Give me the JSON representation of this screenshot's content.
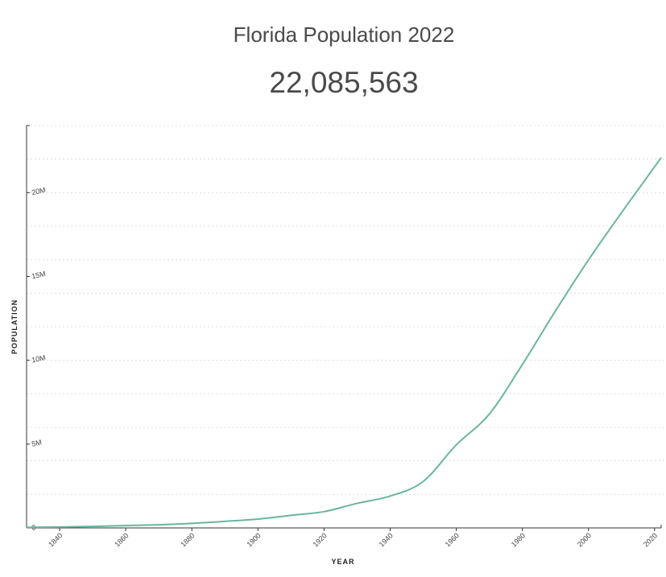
{
  "header": {
    "title": "Florida Population 2022",
    "total": "22,085,563"
  },
  "chart_data": {
    "type": "line",
    "title": "Florida Population 2022",
    "xlabel": "YEAR",
    "ylabel": "POPULATION",
    "xlim": [
      1830,
      2022
    ],
    "ylim": [
      0,
      24000000
    ],
    "x_ticks": [
      1840,
      1860,
      1880,
      1900,
      1920,
      1940,
      1960,
      1980,
      2000,
      2020
    ],
    "y_ticks": [
      0,
      5000000,
      10000000,
      15000000,
      20000000
    ],
    "y_tick_labels": [
      "0",
      "5M",
      "10M",
      "15M",
      "20M"
    ],
    "grid": true,
    "line_color": "#6ab5a0",
    "series": [
      {
        "x": [
          1830,
          1840,
          1850,
          1860,
          1870,
          1880,
          1890,
          1900,
          1910,
          1920,
          1930,
          1940,
          1950,
          1960,
          1970,
          1980,
          1990,
          2000,
          2010,
          2020,
          2022
        ],
        "values": [
          34730,
          54477,
          87445,
          140424,
          187748,
          269493,
          391422,
          528542,
          752619,
          968470,
          1468211,
          1897414,
          2771305,
          4951560,
          6789443,
          9746324,
          12937926,
          15982378,
          18801310,
          21538187,
          22085563
        ]
      }
    ]
  }
}
